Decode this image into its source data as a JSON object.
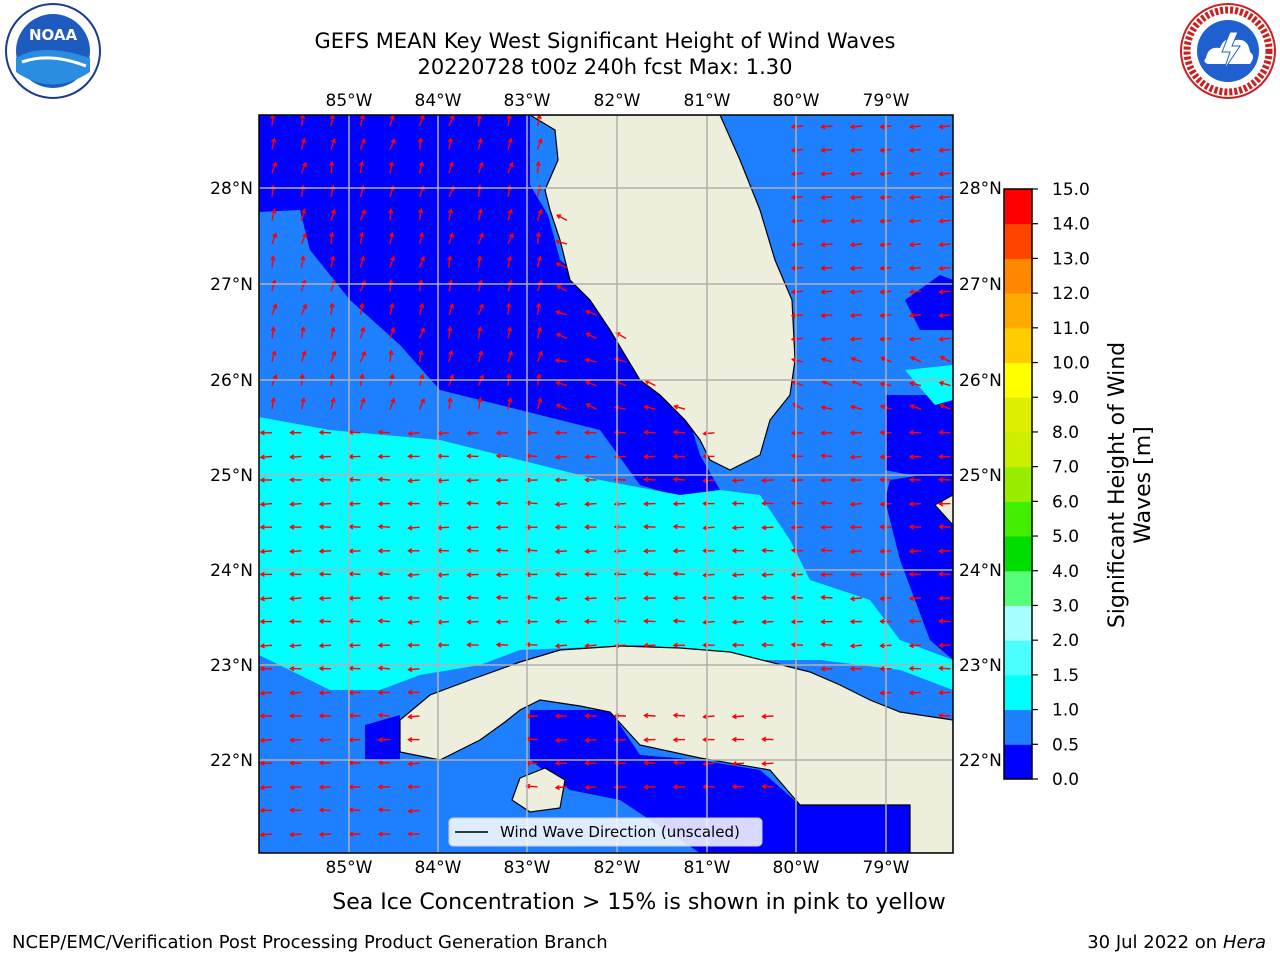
{
  "header": {
    "title_line1": "GEFS MEAN Key West Significant Height of Wind Waves",
    "title_line2": "20220728 t00z 240h fcst   Max: 1.30"
  },
  "logos": {
    "left": {
      "icon": "noaa-logo",
      "text": "NOAA"
    },
    "right": {
      "icon": "national-weather-service-logo",
      "text": "NATIONAL WEATHER SERVICE"
    }
  },
  "map": {
    "lon_labels": [
      "85°W",
      "84°W",
      "83°W",
      "82°W",
      "81°W",
      "80°W",
      "79°W"
    ],
    "lat_labels": [
      "28°N",
      "27°N",
      "26°N",
      "25°N",
      "24°N",
      "23°N",
      "22°N"
    ],
    "legend_label": "Wind Wave Direction (unscaled)",
    "colors": {
      "land": "#eeeedc",
      "arrow": "#ff0000",
      "grid": "#b0b0b0"
    }
  },
  "colorbar": {
    "label_line1": "Significant Height of Wind",
    "label_line2": "Waves [m]",
    "ticks": [
      "0.0",
      "0.5",
      "1.0",
      "1.5",
      "2.0",
      "3.0",
      "4.0",
      "5.0",
      "6.0",
      "7.0",
      "8.0",
      "9.0",
      "10.0",
      "11.0",
      "12.0",
      "13.0",
      "14.0",
      "15.0"
    ],
    "colors": [
      "#0000ff",
      "#1e7fff",
      "#00ffff",
      "#4cffff",
      "#a8ffff",
      "#55ff77",
      "#00dd00",
      "#44ee00",
      "#99ee00",
      "#ccee00",
      "#ddee00",
      "#ffff00",
      "#ffcc00",
      "#ffaa00",
      "#ff8800",
      "#ff4400",
      "#ff0000"
    ]
  },
  "note": "Sea Ice Concentration > 15% is shown in pink to yellow",
  "footer": {
    "left": "NCEP/EMC/Verification Post Processing Product Generation Branch",
    "right_date": "30 Jul 2022 on ",
    "right_host": "Hera"
  }
}
